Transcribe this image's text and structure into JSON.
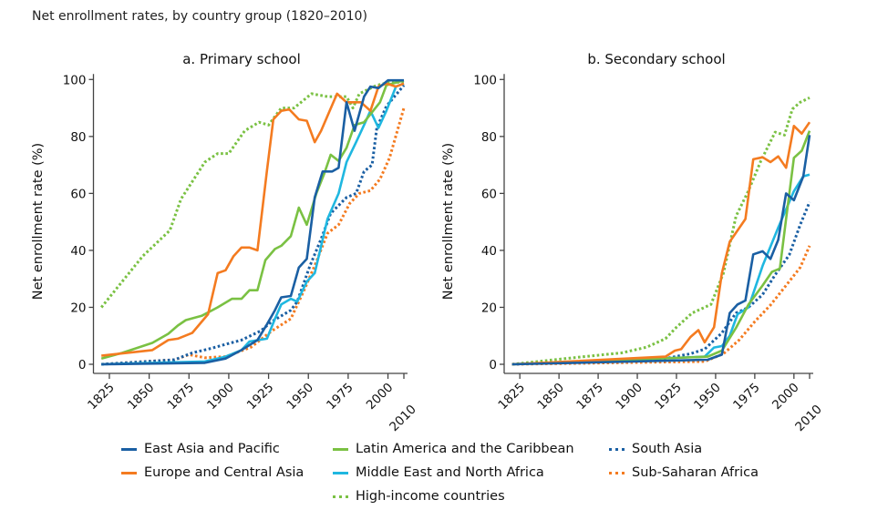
{
  "title": "Net enrollment rates, by country group (1820–2010)",
  "chart_data": [
    {
      "type": "line",
      "title": "a. Primary school",
      "xlabel": "",
      "ylabel": "Net enrollment rate (%)",
      "xlim": [
        1815,
        2010
      ],
      "ylim": [
        0,
        100
      ],
      "xticks": [
        1825,
        1850,
        1875,
        1900,
        1925,
        1950,
        1975,
        2000,
        2010
      ],
      "yticks": [
        0,
        20,
        40,
        60,
        80,
        100
      ],
      "grid": false,
      "series": [
        {
          "name": "East Asia and Pacific",
          "color": "#1a5fa3",
          "style": "solid",
          "x": [
            1820,
            1885,
            1898,
            1908,
            1918,
            1924,
            1929,
            1933,
            1939,
            1944,
            1949,
            1954,
            1959,
            1965,
            1969,
            1974,
            1979,
            1985,
            1989,
            1994,
            2000,
            2010
          ],
          "y": [
            0,
            0.5,
            2,
            5,
            8.5,
            14,
            19,
            23.5,
            24,
            34,
            37,
            58.6,
            67.7,
            67.7,
            69,
            92,
            82,
            94,
            97.5,
            97,
            99.7,
            99.7
          ]
        },
        {
          "name": "Europe and Central Asia",
          "color": "#f47b20",
          "style": "solid",
          "x": [
            1820,
            1852,
            1862,
            1868,
            1877,
            1887,
            1893,
            1898,
            1903,
            1908,
            1913,
            1918,
            1924,
            1928,
            1933,
            1938,
            1944,
            1949,
            1954,
            1958,
            1968,
            1974,
            1983,
            1989,
            1994,
            1999,
            2005,
            2010
          ],
          "y": [
            3,
            5,
            8.5,
            9,
            11,
            17.6,
            32,
            33,
            38,
            41,
            41,
            40,
            68,
            86,
            89,
            89.5,
            86,
            85.5,
            78,
            82,
            95,
            92,
            92,
            89,
            97.5,
            98.6,
            97.5,
            98.6
          ]
        },
        {
          "name": "Latin America and the Caribbean",
          "color": "#7ac143",
          "style": "solid",
          "x": [
            1820,
            1833,
            1852,
            1862,
            1868,
            1873,
            1883,
            1893,
            1902,
            1908,
            1913,
            1918,
            1923,
            1929,
            1933,
            1939,
            1944,
            1949,
            1955,
            1960,
            1964,
            1969,
            1974,
            1979,
            1985,
            1995,
            1999,
            2010
          ],
          "y": [
            2,
            4,
            7.5,
            10.7,
            13.6,
            15.5,
            17,
            20,
            23,
            23,
            26,
            26,
            36.6,
            40.5,
            41.6,
            45,
            55,
            49,
            60,
            67,
            73.6,
            71.4,
            76,
            84,
            85,
            92,
            98,
            99.7
          ]
        },
        {
          "name": "Middle East and North Africa",
          "color": "#1fb7e0",
          "style": "solid",
          "x": [
            1820,
            1885,
            1898,
            1908,
            1913,
            1924,
            1929,
            1933,
            1939,
            1943,
            1949,
            1954,
            1962,
            1969,
            1974,
            1980,
            1985,
            1989,
            1994,
            1999,
            2005,
            2010
          ],
          "y": [
            0,
            1,
            2.7,
            5,
            8,
            9,
            16,
            21,
            23,
            22,
            29,
            32,
            51,
            60,
            71,
            78,
            84,
            89,
            83,
            89,
            97.5,
            98.6
          ]
        },
        {
          "name": "High-income countries",
          "color": "#7ac143",
          "style": "dotted",
          "x": [
            1820,
            1833,
            1846,
            1863,
            1870,
            1885,
            1893,
            1900,
            1910,
            1919,
            1925,
            1933,
            1941,
            1952,
            1962,
            1974,
            1978,
            1982,
            1993,
            2001,
            2010
          ],
          "y": [
            20,
            29,
            38,
            47,
            58,
            71,
            74,
            74,
            82,
            85,
            84,
            90,
            90,
            95,
            94,
            94,
            90,
            95,
            98,
            99,
            99
          ]
        },
        {
          "name": "South Asia",
          "color": "#1a5fa3",
          "style": "dotted",
          "x": [
            1820,
            1866,
            1877,
            1889,
            1898,
            1908,
            1920,
            1927,
            1939,
            1943,
            1951,
            1958,
            1964,
            1974,
            1980,
            1985,
            1990,
            1993,
            1999,
            2010
          ],
          "y": [
            0,
            1.6,
            4,
            5.6,
            7,
            8.5,
            11.7,
            15,
            19,
            22,
            34.6,
            44,
            53,
            58.6,
            60,
            67.7,
            70,
            83,
            90.6,
            98
          ]
        },
        {
          "name": "Sub-Saharan Africa",
          "color": "#f47b20",
          "style": "dotted",
          "x": [
            1820,
            1866,
            1875,
            1885,
            1898,
            1914,
            1927,
            1939,
            1947,
            1955,
            1962,
            1969,
            1976,
            1982,
            1989,
            1995,
            2001,
            2010
          ],
          "y": [
            0,
            1.6,
            3.4,
            2.3,
            2.7,
            6,
            11.7,
            16,
            25.6,
            36,
            46,
            49,
            56.5,
            60,
            61,
            65,
            72.5,
            90
          ]
        }
      ]
    },
    {
      "type": "line",
      "title": "b. Secondary school",
      "xlabel": "",
      "ylabel": "Net enrollment rate (%)",
      "xlim": [
        1815,
        2010
      ],
      "ylim": [
        0,
        100
      ],
      "xticks": [
        1825,
        1850,
        1875,
        1900,
        1925,
        1950,
        1975,
        2000,
        2010
      ],
      "yticks": [
        0,
        20,
        40,
        60,
        80,
        100
      ],
      "grid": false,
      "series": [
        {
          "name": "East Asia and Pacific",
          "color": "#1a5fa3",
          "style": "solid",
          "x": [
            1820,
            1945,
            1954,
            1959,
            1964,
            1969,
            1974,
            1980,
            1985,
            1990,
            1995,
            2000,
            2006,
            2010
          ],
          "y": [
            0,
            1.6,
            3.4,
            18,
            21,
            22.4,
            38.6,
            39.7,
            37,
            43.7,
            60,
            57.6,
            66,
            80.5
          ]
        },
        {
          "name": "Europe and Central Asia",
          "color": "#f47b20",
          "style": "solid",
          "x": [
            1820,
            1918,
            1924,
            1928,
            1934,
            1939,
            1943,
            1949,
            1954,
            1959,
            1964,
            1969,
            1974,
            1980,
            1985,
            1990,
            1995,
            2000,
            2005,
            2010
          ],
          "y": [
            0,
            2.7,
            4.8,
            5.3,
            9.6,
            12,
            7.7,
            13,
            32,
            43,
            47,
            51,
            72,
            72.7,
            71,
            73,
            69,
            83.7,
            81,
            85
          ]
        },
        {
          "name": "Latin America and the Caribbean",
          "color": "#7ac143",
          "style": "solid",
          "x": [
            1820,
            1945,
            1954,
            1963,
            1971,
            1980,
            1986,
            1991,
            1995,
            2000,
            2005,
            2010
          ],
          "y": [
            0,
            2.7,
            4.8,
            12.8,
            21,
            27.7,
            32.5,
            33.6,
            51,
            72.5,
            75,
            82
          ]
        },
        {
          "name": "Middle East and North Africa",
          "color": "#1fb7e0",
          "style": "solid",
          "x": [
            1820,
            1943,
            1949,
            1954,
            1959,
            1964,
            1971,
            1980,
            1990,
            2000,
            2006,
            2010
          ],
          "y": [
            0,
            2.7,
            5.9,
            6.4,
            10,
            17.6,
            20,
            34.6,
            48,
            60.8,
            66,
            66.6
          ]
        },
        {
          "name": "High-income countries",
          "color": "#7ac143",
          "style": "dotted",
          "x": [
            1820,
            1847,
            1866,
            1890,
            1906,
            1918,
            1925,
            1935,
            1947,
            1955,
            1963,
            1971,
            1979,
            1988,
            1994,
            1999,
            2004,
            2010
          ],
          "y": [
            0,
            1.6,
            2.7,
            4,
            6,
            9,
            13,
            18,
            21,
            32,
            52,
            61,
            71.5,
            81.5,
            80.5,
            89.6,
            92,
            93.6
          ]
        },
        {
          "name": "South Asia",
          "color": "#1a5fa3",
          "style": "dotted",
          "x": [
            1820,
            1918,
            1934,
            1943,
            1954,
            1963,
            1971,
            1980,
            1988,
            1997,
            2004,
            2010
          ],
          "y": [
            0,
            2,
            3.7,
            5.3,
            11,
            18,
            20,
            24.5,
            31.4,
            38.4,
            49,
            57
          ]
        },
        {
          "name": "Sub-Saharan Africa",
          "color": "#f47b20",
          "style": "dotted",
          "x": [
            1820,
            1943,
            1955,
            1965,
            1975,
            1985,
            1995,
            2004,
            2010
          ],
          "y": [
            0,
            1,
            3.7,
            8.5,
            15,
            20.8,
            27.7,
            34,
            41.6
          ]
        }
      ]
    }
  ],
  "legend": [
    {
      "label": "East Asia and Pacific",
      "color": "#1a5fa3",
      "style": "solid"
    },
    {
      "label": "Latin America and the Caribbean",
      "color": "#7ac143",
      "style": "solid"
    },
    {
      "label": "South Asia",
      "color": "#1a5fa3",
      "style": "dotted"
    },
    {
      "label": "Europe and Central Asia",
      "color": "#f47b20",
      "style": "solid"
    },
    {
      "label": "Middle East and North Africa",
      "color": "#1fb7e0",
      "style": "solid"
    },
    {
      "label": "Sub-Saharan Africa",
      "color": "#f47b20",
      "style": "dotted"
    },
    {
      "label": "High-income countries",
      "color": "#7ac143",
      "style": "dotted"
    }
  ]
}
